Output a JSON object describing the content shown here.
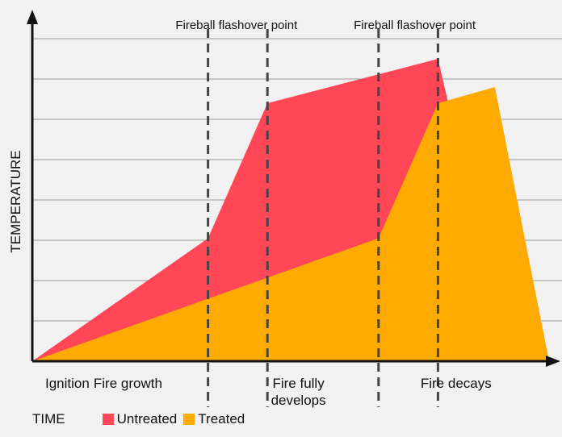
{
  "chart_data": {
    "type": "area",
    "xlabel": "TIME",
    "ylabel": "TEMPERATURE",
    "xlim": [
      0,
      100
    ],
    "ylim": [
      0,
      8
    ],
    "grid": true,
    "legend_position": "bottom-left",
    "phase_labels": [
      {
        "text": "Ignition",
        "lines": [
          "Ignition"
        ],
        "x": 2.5
      },
      {
        "text": "Fire growth",
        "lines": [
          "Fire growth"
        ],
        "x": 18.5
      },
      {
        "text": "Fire fully develops",
        "lines": [
          "Fire fully",
          "develops"
        ],
        "x": 51.5
      },
      {
        "text": "Fire decays",
        "lines": [
          "Fire decays"
        ],
        "x": 82
      }
    ],
    "dividers": [
      34,
      45.5,
      67,
      78.5
    ],
    "annotations": [
      {
        "text": "Fireball flashover point",
        "x": 39.5
      },
      {
        "text": "Fireball flashover point",
        "x": 74
      }
    ],
    "series": [
      {
        "name": "Untreated",
        "color": "#ff4757",
        "x": [
          0,
          34,
          45.5,
          78.5,
          80.5,
          100
        ],
        "y": [
          0,
          3.05,
          6.4,
          7.5,
          6.4,
          0
        ]
      },
      {
        "name": "Treated",
        "color": "#ffaa00",
        "x": [
          0,
          34,
          67,
          78.5,
          89.5,
          100
        ],
        "y": [
          0,
          1.55,
          3.05,
          6.4,
          6.8,
          0
        ]
      }
    ]
  }
}
